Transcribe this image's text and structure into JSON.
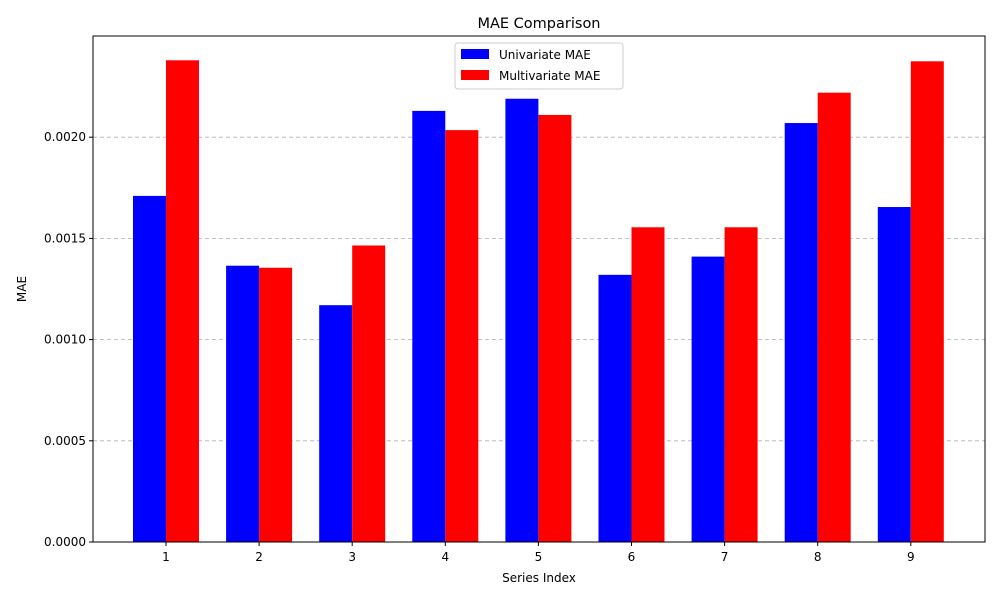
{
  "chart_data": {
    "type": "bar",
    "title": "MAE Comparison",
    "xlabel": "Series Index",
    "ylabel": "MAE",
    "categories": [
      "1",
      "2",
      "3",
      "4",
      "5",
      "6",
      "7",
      "8",
      "9"
    ],
    "series": [
      {
        "name": "Univariate MAE",
        "color": "#0000ff",
        "values": [
          0.00171,
          0.001365,
          0.00117,
          0.00213,
          0.00219,
          0.00132,
          0.00141,
          0.00207,
          0.001655
        ]
      },
      {
        "name": "Multivariate MAE",
        "color": "#ff0000",
        "values": [
          0.00238,
          0.001355,
          0.001465,
          0.002035,
          0.00211,
          0.001555,
          0.001555,
          0.00222,
          0.002375
        ]
      }
    ],
    "ylim": [
      0,
      0.0025
    ],
    "yticks": [
      "0.0000",
      "0.0005",
      "0.0010",
      "0.0015",
      "0.0020"
    ],
    "grid": "y-dashed",
    "legend": "top-center"
  }
}
